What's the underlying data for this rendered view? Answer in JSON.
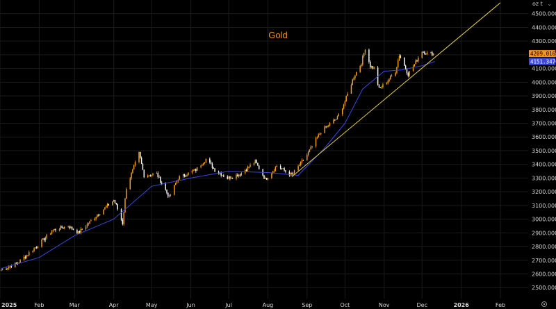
{
  "chart_data": {
    "type": "candlestick",
    "title": "Gold",
    "unit_label": "oz t",
    "xlabel": "",
    "ylabel": "",
    "ylim": [
      2420,
      4600
    ],
    "grid": true,
    "y_ticks": [
      "4500.0000",
      "4400.0000",
      "4300.0000",
      "4200.0000",
      "4100.0000",
      "4000.0000",
      "3900.0000",
      "3800.0000",
      "3700.0000",
      "3600.0000",
      "3500.0000",
      "3400.0000",
      "3300.0000",
      "3200.0000",
      "3100.0000",
      "3000.0000",
      "2900.0000",
      "2800.0000",
      "2700.0000",
      "2600.0000",
      "2500.0000"
    ],
    "x_ticks": [
      {
        "label": "2025",
        "date": "2025-01-01",
        "bold": true
      },
      {
        "label": "Feb",
        "date": "2025-02-01",
        "bold": false
      },
      {
        "label": "Mar",
        "date": "2025-03-01",
        "bold": false
      },
      {
        "label": "Apr",
        "date": "2025-04-01",
        "bold": false
      },
      {
        "label": "May",
        "date": "2025-05-01",
        "bold": false
      },
      {
        "label": "Jun",
        "date": "2025-06-01",
        "bold": false
      },
      {
        "label": "Jul",
        "date": "2025-07-01",
        "bold": false
      },
      {
        "label": "Aug",
        "date": "2025-08-01",
        "bold": false
      },
      {
        "label": "Sep",
        "date": "2025-09-01",
        "bold": false
      },
      {
        "label": "Oct",
        "date": "2025-10-01",
        "bold": false
      },
      {
        "label": "Nov",
        "date": "2025-11-01",
        "bold": false
      },
      {
        "label": "Dec",
        "date": "2025-12-01",
        "bold": false
      },
      {
        "label": "2026",
        "date": "2026-01-01",
        "bold": true
      },
      {
        "label": "Feb",
        "date": "2026-02-01",
        "bold": false
      }
    ],
    "x_range": [
      "2025-01-01",
      "2026-02-23"
    ],
    "price_key_points": [
      [
        "2025-01-02",
        2630
      ],
      [
        "2025-01-15",
        2680
      ],
      [
        "2025-01-31",
        2810
      ],
      [
        "2025-02-12",
        2920
      ],
      [
        "2025-02-24",
        2950
      ],
      [
        "2025-03-04",
        2900
      ],
      [
        "2025-03-20",
        3040
      ],
      [
        "2025-04-01",
        3140
      ],
      [
        "2025-04-03",
        3100
      ],
      [
        "2025-04-08",
        2970
      ],
      [
        "2025-04-11",
        3230
      ],
      [
        "2025-04-21",
        3480
      ],
      [
        "2025-04-25",
        3320
      ],
      [
        "2025-05-05",
        3330
      ],
      [
        "2025-05-15",
        3160
      ],
      [
        "2025-05-22",
        3300
      ],
      [
        "2025-06-05",
        3360
      ],
      [
        "2025-06-13",
        3440
      ],
      [
        "2025-06-20",
        3360
      ],
      [
        "2025-06-30",
        3300
      ],
      [
        "2025-07-10",
        3330
      ],
      [
        "2025-07-22",
        3420
      ],
      [
        "2025-07-30",
        3290
      ],
      [
        "2025-08-08",
        3390
      ],
      [
        "2025-08-20",
        3320
      ],
      [
        "2025-09-01",
        3470
      ],
      [
        "2025-09-12",
        3640
      ],
      [
        "2025-09-25",
        3740
      ],
      [
        "2025-10-01",
        3860
      ],
      [
        "2025-10-08",
        4040
      ],
      [
        "2025-10-14",
        4140
      ],
      [
        "2025-10-17",
        4250
      ],
      [
        "2025-10-21",
        4120
      ],
      [
        "2025-10-24",
        4100
      ],
      [
        "2025-10-28",
        3950
      ],
      [
        "2025-11-03",
        4000
      ],
      [
        "2025-11-10",
        4080
      ],
      [
        "2025-11-13",
        4200
      ],
      [
        "2025-11-20",
        4060
      ],
      [
        "2025-11-25",
        4130
      ],
      [
        "2025-12-01",
        4230
      ],
      [
        "2025-12-05",
        4210
      ],
      [
        "2025-12-10",
        4209
      ]
    ],
    "series": [
      {
        "name": "",
        "kind": "moving_average",
        "color": "#3c48e0",
        "key_points": [
          [
            "2025-01-02",
            2640
          ],
          [
            "2025-02-01",
            2720
          ],
          [
            "2025-03-01",
            2880
          ],
          [
            "2025-04-01",
            3000
          ],
          [
            "2025-05-01",
            3240
          ],
          [
            "2025-06-01",
            3300
          ],
          [
            "2025-07-01",
            3350
          ],
          [
            "2025-08-01",
            3340
          ],
          [
            "2025-08-25",
            3320
          ],
          [
            "2025-09-15",
            3520
          ],
          [
            "2025-10-01",
            3700
          ],
          [
            "2025-10-15",
            3950
          ],
          [
            "2025-11-01",
            4080
          ],
          [
            "2025-11-15",
            4090
          ],
          [
            "2025-12-01",
            4120
          ],
          [
            "2025-12-11",
            4151
          ]
        ]
      }
    ],
    "trendline": {
      "color": "#e8d040",
      "start": [
        "2025-08-20",
        3310
      ],
      "end": [
        "2026-02-01",
        4580
      ]
    },
    "candle_up_color": "#f7a21c",
    "candle_down_color": "#ffffff",
    "last_price": {
      "label": "4209.0161",
      "bg": "#f7931e",
      "fg": "#000000"
    },
    "ma_price": {
      "label": "4151.3470",
      "bg": "#3c48e0",
      "fg": "#ffffff"
    }
  }
}
